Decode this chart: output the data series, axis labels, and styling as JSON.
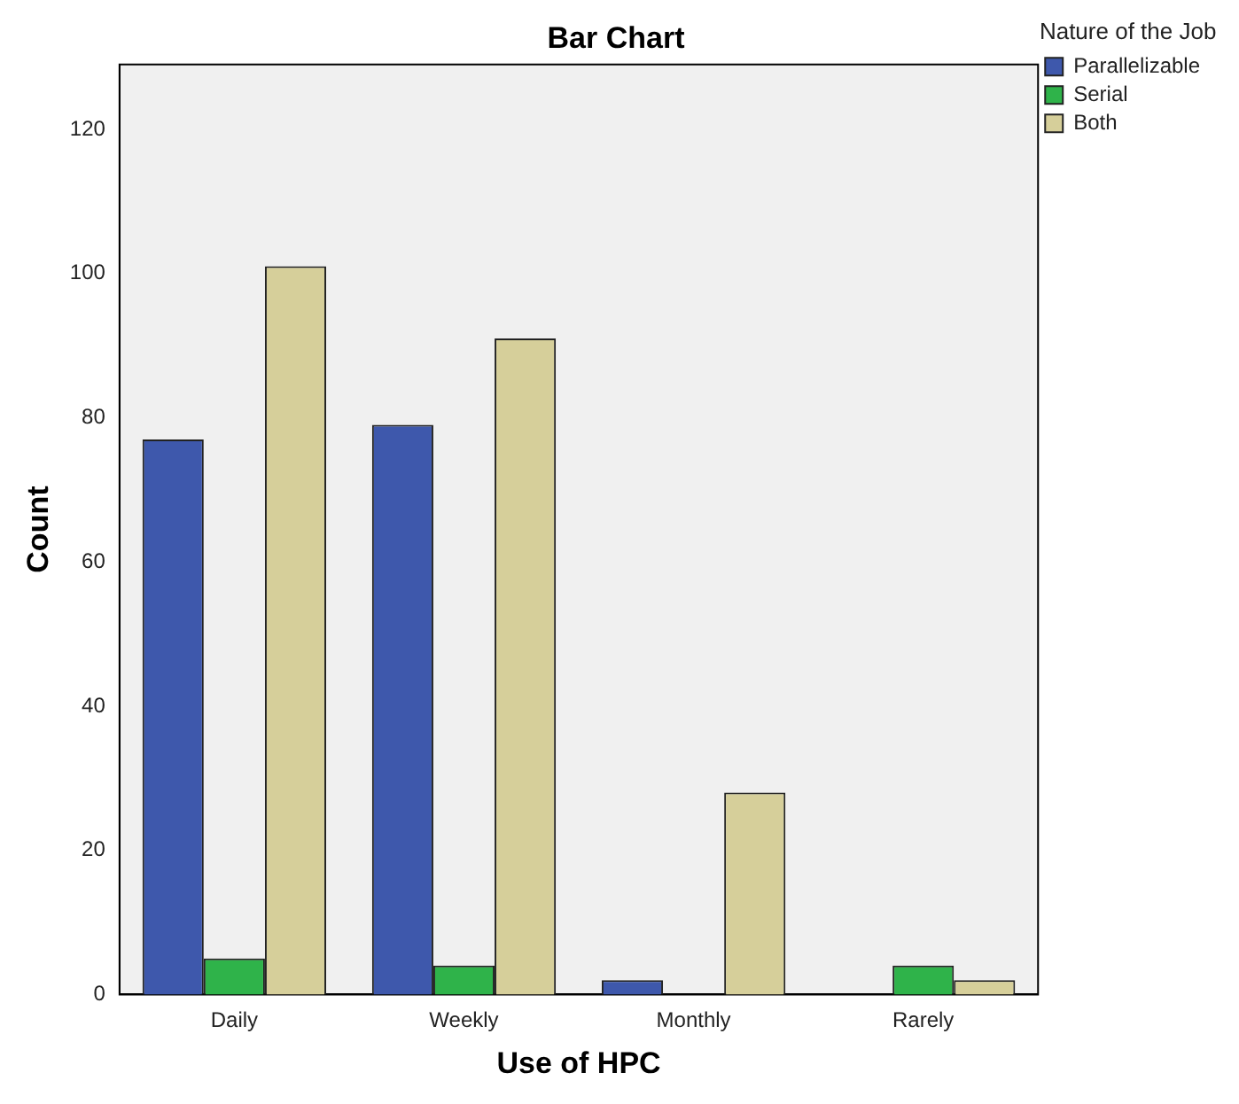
{
  "chart_data": {
    "type": "bar",
    "title": "Bar Chart",
    "xlabel": "Use of HPC",
    "ylabel": "Count",
    "legend_title": "Nature of the Job",
    "categories": [
      "Daily",
      "Weekly",
      "Monthly",
      "Rarely"
    ],
    "series": [
      {
        "name": "Parallelizable",
        "color": "#3e58ac",
        "values": [
          77,
          79,
          2,
          0
        ]
      },
      {
        "name": "Serial",
        "color": "#2fb34a",
        "values": [
          5,
          4,
          0,
          4
        ]
      },
      {
        "name": "Both",
        "color": "#d6cf9a",
        "values": [
          101,
          91,
          28,
          2
        ]
      }
    ],
    "ylim": [
      0,
      129
    ],
    "yticks": [
      0,
      20,
      40,
      60,
      80,
      100,
      120
    ],
    "grid": false,
    "legend": "top right"
  }
}
